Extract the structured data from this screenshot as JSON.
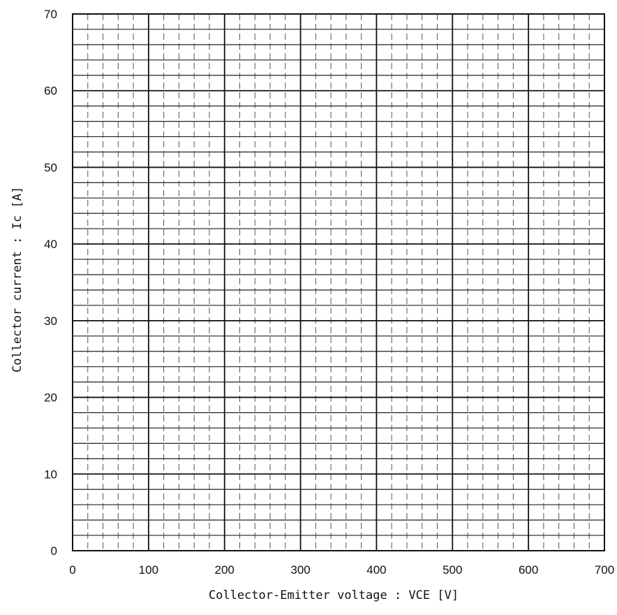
{
  "chart_data": {
    "type": "scatter",
    "title": "",
    "xlabel": "Collector-Emitter voltage  : VCE  [V]",
    "ylabel": "Collector current :  Ic  [A]",
    "xlim": [
      0,
      700
    ],
    "ylim": [
      0,
      70
    ],
    "x_ticks": [
      0,
      100,
      200,
      300,
      400,
      500,
      600,
      700
    ],
    "y_ticks": [
      0,
      10,
      20,
      30,
      40,
      50,
      60,
      70
    ],
    "x_tick_labels": [
      "0",
      "100",
      "200",
      "300",
      "400",
      "500",
      "600",
      "700"
    ],
    "y_tick_labels": [
      "0",
      "10",
      "20",
      "30",
      "40",
      "50",
      "60",
      "70"
    ],
    "grid": true,
    "x_minor_step": 20,
    "y_minor_step": 2,
    "series": []
  },
  "colors": {
    "background": "#ffffff",
    "grid_major": "#111111",
    "grid_minor_vertical": "#555555",
    "grid_minor_horizontal": "#222222"
  }
}
